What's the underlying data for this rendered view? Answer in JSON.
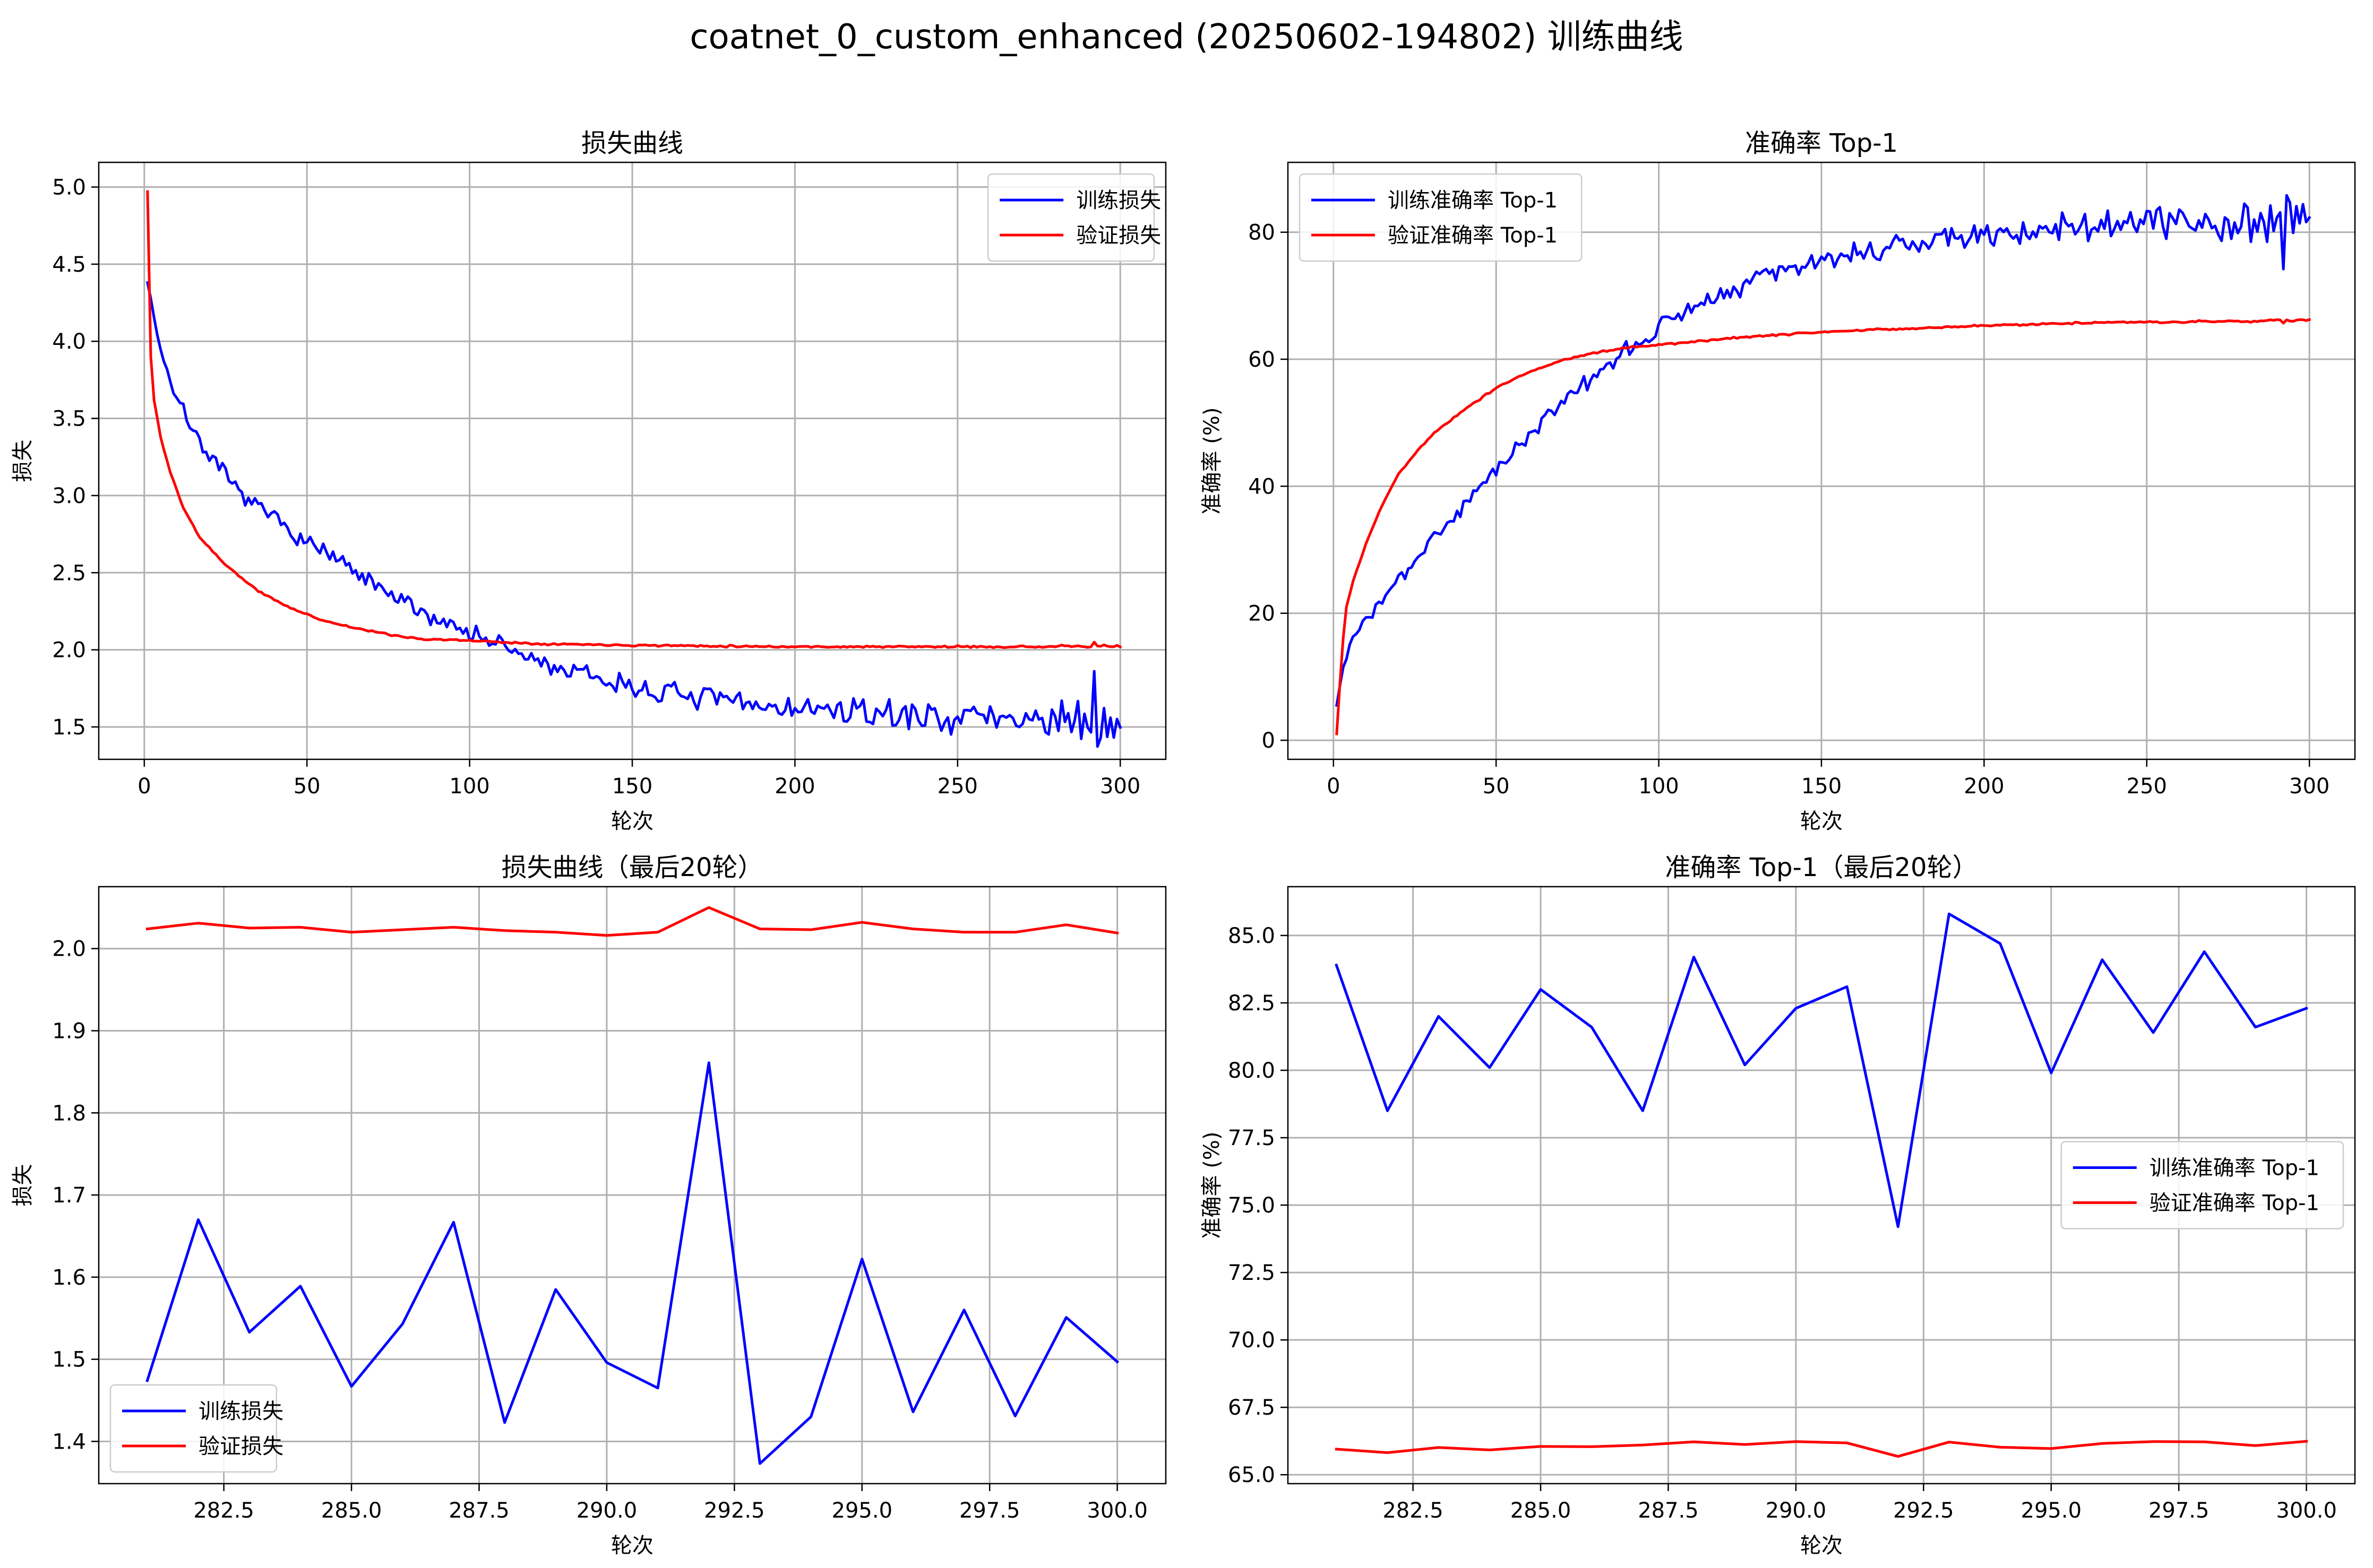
{
  "figure": {
    "title": "coatnet_0_custom_enhanced (20250602-194802) 训练曲线"
  },
  "colors": {
    "train": "#0000ff",
    "val": "#ff0000",
    "grid": "#b0b0b0",
    "axes": "#000000"
  },
  "chart_data": [
    {
      "id": "loss_full",
      "type": "line",
      "title": "损失曲线",
      "xlabel": "轮次",
      "ylabel": "损失",
      "xlim": [
        -14,
        314
      ],
      "ylim": [
        1.29,
        5.16
      ],
      "xticks": [
        0,
        50,
        100,
        150,
        200,
        250,
        300
      ],
      "yticks": [
        1.5,
        2.0,
        2.5,
        3.0,
        3.5,
        4.0,
        4.5,
        5.0
      ],
      "ytick_decimals": 1,
      "xtick_decimals": 0,
      "grid": true,
      "legend": "top-right",
      "series": [
        {
          "name": "训练损失",
          "color_key": "train",
          "x_range": [
            1,
            300
          ],
          "anchors": [
            [
              1,
              4.38
            ],
            [
              5,
              3.95
            ],
            [
              10,
              3.62
            ],
            [
              20,
              3.25
            ],
            [
              30,
              3.0
            ],
            [
              40,
              2.85
            ],
            [
              50,
              2.7
            ],
            [
              60,
              2.57
            ],
            [
              70,
              2.42
            ],
            [
              80,
              2.3
            ],
            [
              90,
              2.2
            ],
            [
              100,
              2.12
            ],
            [
              110,
              2.02
            ],
            [
              120,
              1.93
            ],
            [
              130,
              1.86
            ],
            [
              140,
              1.81
            ],
            [
              150,
              1.76
            ],
            [
              160,
              1.72
            ],
            [
              170,
              1.69
            ],
            [
              180,
              1.66
            ],
            [
              190,
              1.64
            ],
            [
              200,
              1.62
            ],
            [
              220,
              1.59
            ],
            [
              240,
              1.57
            ],
            [
              260,
              1.56
            ],
            [
              280,
              1.55
            ],
            [
              300,
              1.52
            ]
          ],
          "noise": {
            "seed": 7,
            "amp_start": 0.07,
            "amp_end": 0.15
          },
          "tail": [
            1.474,
            1.67,
            1.533,
            1.589,
            1.467,
            1.543,
            1.667,
            1.423,
            1.585,
            1.496,
            1.465,
            1.861,
            1.373,
            1.43,
            1.622,
            1.436,
            1.56,
            1.431,
            1.551,
            1.497
          ]
        },
        {
          "name": "验证损失",
          "color_key": "val",
          "x_range": [
            1,
            300
          ],
          "anchors": [
            [
              1,
              4.97
            ],
            [
              2,
              3.9
            ],
            [
              3,
              3.62
            ],
            [
              5,
              3.38
            ],
            [
              8,
              3.15
            ],
            [
              12,
              2.92
            ],
            [
              17,
              2.73
            ],
            [
              25,
              2.55
            ],
            [
              35,
              2.38
            ],
            [
              45,
              2.27
            ],
            [
              55,
              2.19
            ],
            [
              65,
              2.14
            ],
            [
              75,
              2.1
            ],
            [
              85,
              2.07
            ],
            [
              100,
              2.06
            ],
            [
              120,
              2.04
            ],
            [
              150,
              2.03
            ],
            [
              200,
              2.02
            ],
            [
              250,
              2.02
            ],
            [
              300,
              2.02
            ]
          ],
          "noise": {
            "seed": 11,
            "amp_start": 0.008,
            "amp_end": 0.009
          },
          "tail": [
            2.024,
            2.031,
            2.025,
            2.026,
            2.02,
            2.023,
            2.026,
            2.022,
            2.02,
            2.016,
            2.02,
            2.05,
            2.024,
            2.023,
            2.032,
            2.024,
            2.02,
            2.02,
            2.029,
            2.019
          ]
        }
      ]
    },
    {
      "id": "acc_full",
      "type": "line",
      "title": "准确率 Top-1",
      "xlabel": "轮次",
      "ylabel": "准确率 (%)",
      "xlim": [
        -14,
        314
      ],
      "ylim": [
        -3,
        91
      ],
      "xticks": [
        0,
        50,
        100,
        150,
        200,
        250,
        300
      ],
      "yticks": [
        0,
        20,
        40,
        60,
        80
      ],
      "ytick_decimals": 0,
      "xtick_decimals": 0,
      "grid": true,
      "legend": "top-left",
      "series": [
        {
          "name": "训练准确率 Top-1",
          "color_key": "train",
          "x_range": [
            1,
            300
          ],
          "anchors": [
            [
              1,
              5.5
            ],
            [
              3,
              12
            ],
            [
              6,
              16
            ],
            [
              10,
              19
            ],
            [
              20,
              25
            ],
            [
              30,
              31
            ],
            [
              40,
              37
            ],
            [
              50,
              43
            ],
            [
              60,
              48
            ],
            [
              70,
              53
            ],
            [
              80,
              57
            ],
            [
              90,
              61
            ],
            [
              100,
              65
            ],
            [
              110,
              68
            ],
            [
              120,
              71
            ],
            [
              130,
              73
            ],
            [
              140,
              74.5
            ],
            [
              150,
              75.5
            ],
            [
              170,
              77.5
            ],
            [
              190,
              79
            ],
            [
              210,
              80
            ],
            [
              230,
              80.8
            ],
            [
              250,
              81.5
            ],
            [
              270,
              82
            ],
            [
              300,
              82.3
            ]
          ],
          "noise": {
            "seed": 3,
            "amp_start": 1.2,
            "amp_end": 4.2
          },
          "tail": [
            83.9,
            78.5,
            82.0,
            80.1,
            83.0,
            81.6,
            78.5,
            84.2,
            80.2,
            82.3,
            83.1,
            74.2,
            85.8,
            84.7,
            79.9,
            84.1,
            81.4,
            84.4,
            81.6,
            82.3
          ]
        },
        {
          "name": "验证准确率 Top-1",
          "color_key": "val",
          "x_range": [
            1,
            300
          ],
          "anchors": [
            [
              1,
              1.0
            ],
            [
              2,
              9
            ],
            [
              3,
              16
            ],
            [
              4,
              21
            ],
            [
              6,
              25
            ],
            [
              10,
              31
            ],
            [
              15,
              37
            ],
            [
              20,
              42
            ],
            [
              30,
              48
            ],
            [
              40,
              52
            ],
            [
              50,
              55.5
            ],
            [
              60,
              58
            ],
            [
              70,
              59.8
            ],
            [
              80,
              61
            ],
            [
              90,
              61.8
            ],
            [
              100,
              62.3
            ],
            [
              120,
              63.2
            ],
            [
              140,
              64
            ],
            [
              160,
              64.5
            ],
            [
              180,
              64.9
            ],
            [
              200,
              65.3
            ],
            [
              220,
              65.6
            ],
            [
              240,
              65.8
            ],
            [
              260,
              65.9
            ],
            [
              280,
              66
            ],
            [
              300,
              66.1
            ]
          ],
          "noise": {
            "seed": 5,
            "amp_start": 0.25,
            "amp_end": 0.2
          },
          "tail": [
            65.95,
            65.82,
            66.01,
            65.92,
            66.05,
            66.04,
            66.1,
            66.22,
            66.12,
            66.23,
            66.18,
            65.68,
            66.21,
            66.02,
            65.97,
            66.16,
            66.23,
            66.22,
            66.08,
            66.24
          ]
        }
      ]
    },
    {
      "id": "loss_last20",
      "type": "line",
      "title": "损失曲线（最后20轮）",
      "xlabel": "轮次",
      "ylabel": "损失",
      "xlim": [
        280.05,
        300.95
      ],
      "ylim": [
        1.3486,
        2.0754
      ],
      "xticks": [
        282.5,
        285.0,
        287.5,
        290.0,
        292.5,
        295.0,
        297.5,
        300.0
      ],
      "yticks": [
        1.4,
        1.5,
        1.6,
        1.7,
        1.8,
        1.9,
        2.0
      ],
      "ytick_decimals": 1,
      "xtick_decimals": 1,
      "grid": true,
      "legend": "bottom-left",
      "x": [
        281,
        282,
        283,
        284,
        285,
        286,
        287,
        288,
        289,
        290,
        291,
        292,
        293,
        294,
        295,
        296,
        297,
        298,
        299,
        300
      ],
      "series": [
        {
          "name": "训练损失",
          "color_key": "train",
          "values": [
            1.474,
            1.67,
            1.533,
            1.589,
            1.467,
            1.543,
            1.667,
            1.423,
            1.585,
            1.496,
            1.465,
            1.861,
            1.373,
            1.43,
            1.622,
            1.436,
            1.56,
            1.431,
            1.551,
            1.497
          ]
        },
        {
          "name": "验证损失",
          "color_key": "val",
          "values": [
            2.024,
            2.031,
            2.025,
            2.026,
            2.02,
            2.023,
            2.026,
            2.022,
            2.02,
            2.016,
            2.02,
            2.05,
            2.024,
            2.023,
            2.032,
            2.024,
            2.02,
            2.02,
            2.029,
            2.019
          ]
        }
      ]
    },
    {
      "id": "acc_last20",
      "type": "line",
      "title": "准确率 Top-1（最后20轮）",
      "xlabel": "轮次",
      "ylabel": "准确率 (%)",
      "xlim": [
        280.05,
        300.95
      ],
      "ylim": [
        64.67,
        86.81
      ],
      "xticks": [
        282.5,
        285.0,
        287.5,
        290.0,
        292.5,
        295.0,
        297.5,
        300.0
      ],
      "yticks": [
        65.0,
        67.5,
        70.0,
        72.5,
        75.0,
        77.5,
        80.0,
        82.5,
        85.0
      ],
      "ytick_decimals": 1,
      "xtick_decimals": 1,
      "grid": true,
      "legend": "center-right",
      "x": [
        281,
        282,
        283,
        284,
        285,
        286,
        287,
        288,
        289,
        290,
        291,
        292,
        293,
        294,
        295,
        296,
        297,
        298,
        299,
        300
      ],
      "series": [
        {
          "name": "训练准确率 Top-1",
          "color_key": "train",
          "values": [
            83.9,
            78.5,
            82.0,
            80.1,
            83.0,
            81.6,
            78.5,
            84.2,
            80.2,
            82.3,
            83.1,
            74.2,
            85.8,
            84.7,
            79.9,
            84.1,
            81.4,
            84.4,
            81.6,
            82.3
          ]
        },
        {
          "name": "验证准确率 Top-1",
          "color_key": "val",
          "values": [
            65.95,
            65.82,
            66.01,
            65.92,
            66.05,
            66.04,
            66.1,
            66.22,
            66.12,
            66.23,
            66.18,
            65.68,
            66.21,
            66.02,
            65.97,
            66.16,
            66.23,
            66.22,
            66.08,
            66.24
          ]
        }
      ]
    }
  ]
}
